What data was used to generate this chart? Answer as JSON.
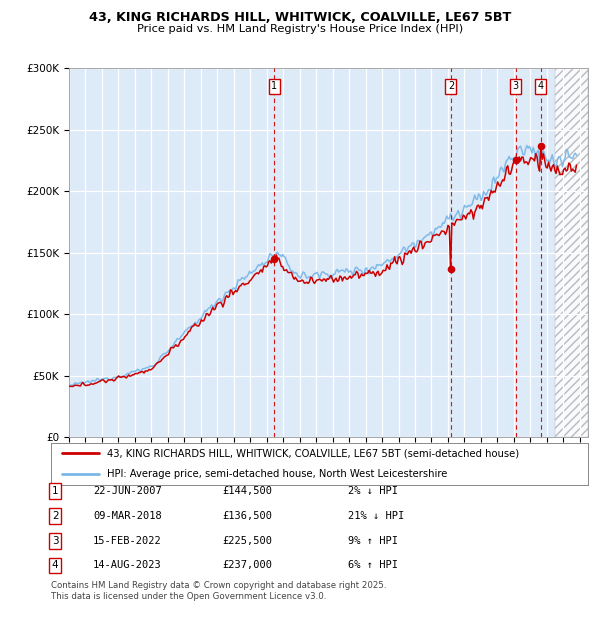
{
  "title_line1": "43, KING RICHARDS HILL, WHITWICK, COALVILLE, LE67 5BT",
  "title_line2": "Price paid vs. HM Land Registry's House Price Index (HPI)",
  "yticks": [
    0,
    50000,
    100000,
    150000,
    200000,
    250000,
    300000
  ],
  "xlim_start": 1995.0,
  "xlim_end": 2026.5,
  "ylim_min": 0,
  "ylim_max": 300000,
  "hpi_color": "#7ab8e8",
  "price_color": "#cc0000",
  "background_color": "#ddeaf7",
  "legend_label_price": "43, KING RICHARDS HILL, WHITWICK, COALVILLE, LE67 5BT (semi-detached house)",
  "legend_label_hpi": "HPI: Average price, semi-detached house, North West Leicestershire",
  "hatch_start": 2024.5,
  "sale_events": [
    {
      "num": 1,
      "date": "22-JUN-2007",
      "price": 144500,
      "year": 2007.47,
      "pct": "2%",
      "dir": "↓"
    },
    {
      "num": 2,
      "date": "09-MAR-2018",
      "price": 136500,
      "year": 2018.18,
      "pct": "21%",
      "dir": "↓"
    },
    {
      "num": 3,
      "date": "15-FEB-2022",
      "price": 225500,
      "year": 2022.12,
      "pct": "9%",
      "dir": "↑"
    },
    {
      "num": 4,
      "date": "14-AUG-2023",
      "price": 237000,
      "year": 2023.62,
      "pct": "6%",
      "dir": "↑"
    }
  ],
  "footer_line1": "Contains HM Land Registry data © Crown copyright and database right 2025.",
  "footer_line2": "This data is licensed under the Open Government Licence v3.0."
}
